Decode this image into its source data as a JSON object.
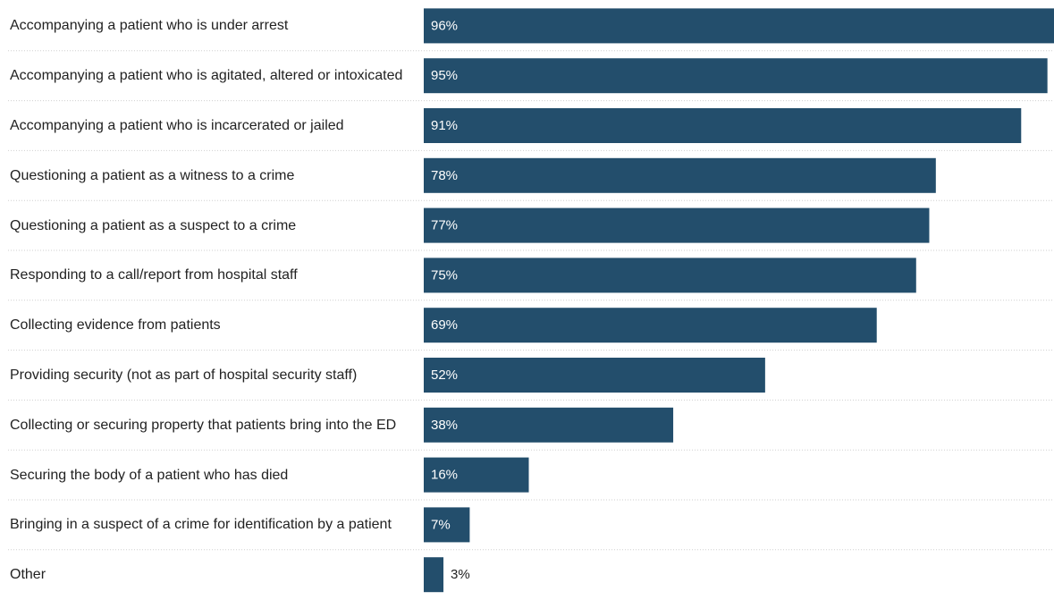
{
  "chart_data": {
    "type": "bar",
    "orientation": "horizontal",
    "categories": [
      "Accompanying a patient who is under arrest",
      "Accompanying a patient who is agitated, altered or intoxicated",
      "Accompanying a patient who is incarcerated or jailed",
      "Questioning a patient as a witness to a crime",
      "Questioning a patient as a suspect to a crime",
      "Responding to a call/report from hospital staff",
      "Collecting evidence from patients",
      "Providing security (not as part of hospital security staff)",
      "Collecting or securing property that patients bring into the ED",
      "Securing the body of a patient who has died",
      "Bringing in a suspect of a crime for identification by a patient",
      "Other"
    ],
    "values": [
      96,
      95,
      91,
      78,
      77,
      75,
      69,
      52,
      38,
      16,
      7,
      3
    ],
    "value_labels": [
      "96%",
      "95%",
      "91%",
      "78%",
      "77%",
      "75%",
      "69%",
      "52%",
      "38%",
      "16%",
      "7%",
      "3%"
    ],
    "xlim": [
      0,
      96
    ],
    "grid": false,
    "bar_color": "#234e6c"
  }
}
